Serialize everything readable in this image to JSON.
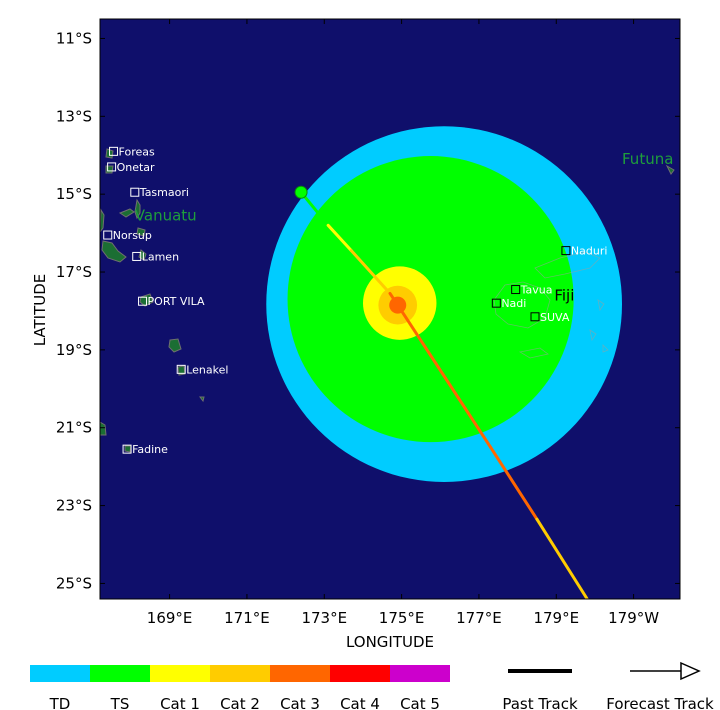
{
  "axes": {
    "xlabel": "LONGITUDE",
    "ylabel": "LATITUDE",
    "x_ticks": [
      {
        "value": 169,
        "label": "169°E"
      },
      {
        "value": 171,
        "label": "171°E"
      },
      {
        "value": 173,
        "label": "173°E"
      },
      {
        "value": 175,
        "label": "175°E"
      },
      {
        "value": 177,
        "label": "177°E"
      },
      {
        "value": 179,
        "label": "179°E"
      },
      {
        "value": 181,
        "label": "179°W"
      }
    ],
    "y_ticks": [
      {
        "value": -11,
        "label": "11°S"
      },
      {
        "value": -13,
        "label": "13°S"
      },
      {
        "value": -15,
        "label": "15°S"
      },
      {
        "value": -17,
        "label": "17°S"
      },
      {
        "value": -19,
        "label": "19°S"
      },
      {
        "value": -21,
        "label": "21°S"
      },
      {
        "value": -23,
        "label": "23°S"
      },
      {
        "value": -25,
        "label": "25°S"
      }
    ],
    "xlim": [
      167.2,
      182.2
    ],
    "ylim": [
      -25.4,
      -10.5
    ]
  },
  "colors": {
    "ocean": "#0f0f6b",
    "land": "#1b6e33",
    "coast": "#6f6f6f",
    "TD": "#00ccff",
    "TS": "#00ff00",
    "Cat 1": "#ffff00",
    "Cat 2": "#ffcc00",
    "Cat 3": "#ff6600",
    "Cat 4": "#ff0000",
    "Cat 5": "#cc00cc"
  },
  "storm": {
    "center": {
      "lon": 174.9,
      "lat": -17.85
    },
    "radii_deg": {
      "TD": 4.6,
      "TS": 3.7,
      "Cat 1": 0.95,
      "Cat 2": 0.5,
      "Cat 3": 0.22
    }
  },
  "track": {
    "past_start": {
      "lon": 172.4,
      "lat": -14.95
    },
    "segments": [
      {
        "from": [
          172.4,
          -14.95
        ],
        "to": [
          173.1,
          -15.8
        ],
        "category": "TS"
      },
      {
        "from": [
          173.1,
          -15.8
        ],
        "to": [
          173.7,
          -16.45
        ],
        "category": "Cat 1"
      },
      {
        "from": [
          173.7,
          -16.45
        ],
        "to": [
          174.7,
          -17.55
        ],
        "category": "Cat 2"
      },
      {
        "from": [
          174.7,
          -17.55
        ],
        "to": [
          175.0,
          -18.0
        ],
        "category": "Cat 3"
      },
      {
        "from": [
          175.0,
          -18.0
        ],
        "to": [
          177.3,
          -21.5
        ],
        "category": "Cat 3"
      },
      {
        "from": [
          177.3,
          -21.5
        ],
        "to": [
          178.5,
          -23.35
        ],
        "category": "Cat 3"
      },
      {
        "from": [
          178.5,
          -23.35
        ],
        "to": [
          179.8,
          -25.4
        ],
        "category": "Cat 2"
      }
    ]
  },
  "places": [
    {
      "name": "Foreas",
      "lon": 167.55,
      "lat": -13.9
    },
    {
      "name": "Onetar",
      "lon": 167.5,
      "lat": -14.3
    },
    {
      "name": "Tasmaori",
      "lon": 168.1,
      "lat": -14.95
    },
    {
      "name": "Norsup",
      "lon": 167.4,
      "lat": -16.05
    },
    {
      "name": "Lamen",
      "lon": 168.15,
      "lat": -16.6
    },
    {
      "name": "PORT VILA",
      "lon": 168.3,
      "lat": -17.75
    },
    {
      "name": "Lenakel",
      "lon": 169.3,
      "lat": -19.5
    },
    {
      "name": "Fadine",
      "lon": 167.9,
      "lat": -21.55
    },
    {
      "name": "Naduri",
      "lon": 179.25,
      "lat": -16.45
    },
    {
      "name": "Tavua",
      "lon": 177.95,
      "lat": -17.45
    },
    {
      "name": "Nadi",
      "lon": 177.45,
      "lat": -17.8
    },
    {
      "name": "SUVA",
      "lon": 178.45,
      "lat": -18.15
    }
  ],
  "regions": [
    {
      "name": "Vanuatu",
      "lon": 168.1,
      "lat": -15.55,
      "color": "#1e9e3c"
    },
    {
      "name": "Fiji",
      "lon": 178.95,
      "lat": -17.6,
      "color": "#000000"
    },
    {
      "name": "Futuna",
      "lon": 180.7,
      "lat": -14.1,
      "color": "#1e9e3c"
    }
  ],
  "legend": {
    "categories": [
      "TD",
      "TS",
      "Cat 1",
      "Cat 2",
      "Cat 3",
      "Cat 4",
      "Cat 5"
    ],
    "past_track_label": "Past Track",
    "forecast_track_label": "Forecast Track"
  }
}
